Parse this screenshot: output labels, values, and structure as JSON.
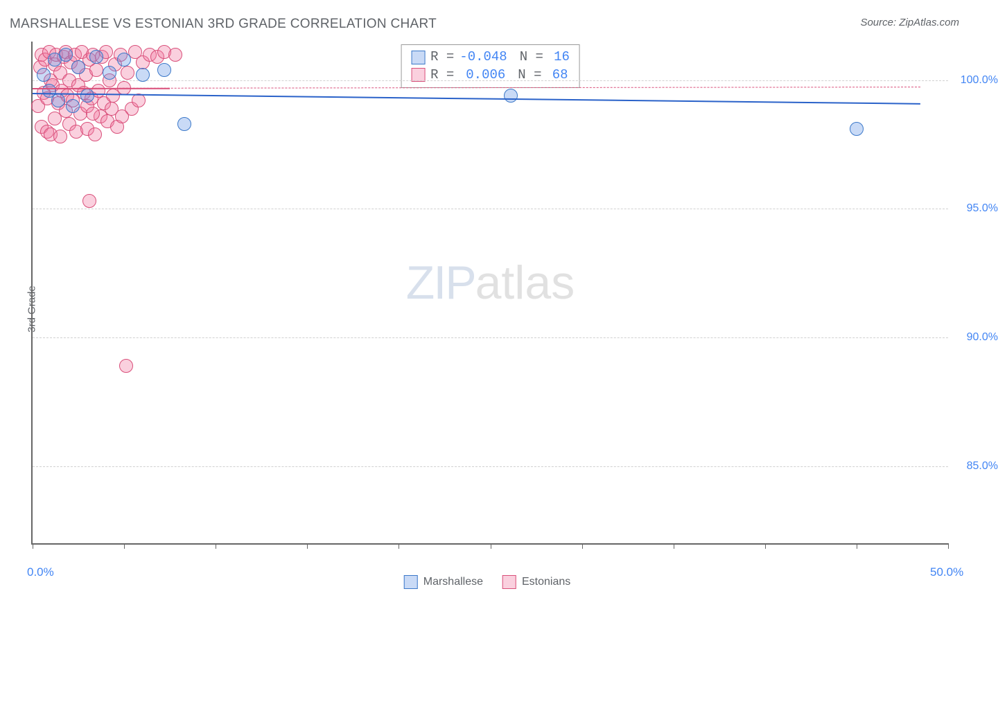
{
  "title": "MARSHALLESE VS ESTONIAN 3RD GRADE CORRELATION CHART",
  "source": "Source: ZipAtlas.com",
  "yAxisLabel": "3rd Grade",
  "watermark": {
    "bold": "ZIP",
    "light": "atlas"
  },
  "chart": {
    "type": "scatter",
    "xlim": [
      0,
      50
    ],
    "ylim": [
      82,
      101.5
    ],
    "background_color": "#ffffff",
    "grid_color": "#d0d0d0",
    "axis_color": "#666666",
    "yTicks": [
      {
        "v": 100,
        "label": "100.0%"
      },
      {
        "v": 95,
        "label": "95.0%"
      },
      {
        "v": 90,
        "label": "90.0%"
      },
      {
        "v": 85,
        "label": "85.0%"
      }
    ],
    "xTicksMinor": [
      0,
      5,
      10,
      15,
      20,
      25,
      30,
      35,
      40,
      45,
      50
    ],
    "xTickLabels": {
      "left": "0.0%",
      "right": "50.0%"
    },
    "marker_radius": 10,
    "marker_border_width": 1.2,
    "series": [
      {
        "name": "Marshallese",
        "fill": "rgba(100,150,230,0.35)",
        "stroke": "#3b78c9",
        "trend": {
          "y1": 99.5,
          "y2": 99.1,
          "x1": 0,
          "x2": 48.5,
          "color": "#2a62c9",
          "width": 2.5,
          "dashed": false
        },
        "stats": {
          "R": "-0.048",
          "N": "16"
        },
        "points": [
          [
            0.6,
            100.2
          ],
          [
            0.9,
            99.6
          ],
          [
            1.2,
            100.8
          ],
          [
            1.4,
            99.2
          ],
          [
            1.8,
            101.0
          ],
          [
            2.2,
            99.0
          ],
          [
            2.5,
            100.5
          ],
          [
            3.0,
            99.4
          ],
          [
            3.5,
            100.9
          ],
          [
            4.2,
            100.3
          ],
          [
            5.0,
            100.8
          ],
          [
            6.0,
            100.2
          ],
          [
            7.2,
            100.4
          ],
          [
            8.3,
            98.3
          ],
          [
            26.1,
            99.4
          ],
          [
            45.0,
            98.1
          ]
        ]
      },
      {
        "name": "Estonians",
        "fill": "rgba(240,120,160,0.35)",
        "stroke": "#d94f7a",
        "trend": {
          "y1": 99.7,
          "y2": 99.75,
          "x1": 0,
          "x2": 48.5,
          "color": "#d94f7a",
          "width": 1.5,
          "dashed": true
        },
        "trendSolidSegment": {
          "x1": 0,
          "x2": 7.5
        },
        "stats": {
          "R": " 0.006",
          "N": "68"
        },
        "points": [
          [
            0.3,
            99.0
          ],
          [
            0.4,
            100.5
          ],
          [
            0.5,
            98.2
          ],
          [
            0.5,
            101.0
          ],
          [
            0.6,
            99.5
          ],
          [
            0.7,
            100.8
          ],
          [
            0.8,
            98.0
          ],
          [
            0.8,
            99.3
          ],
          [
            0.9,
            101.1
          ],
          [
            1.0,
            100.0
          ],
          [
            1.0,
            97.9
          ],
          [
            1.1,
            99.8
          ],
          [
            1.2,
            100.6
          ],
          [
            1.2,
            98.5
          ],
          [
            1.3,
            101.0
          ],
          [
            1.4,
            99.1
          ],
          [
            1.5,
            100.3
          ],
          [
            1.5,
            97.8
          ],
          [
            1.6,
            99.6
          ],
          [
            1.7,
            100.9
          ],
          [
            1.8,
            98.8
          ],
          [
            1.8,
            101.1
          ],
          [
            1.9,
            99.4
          ],
          [
            2.0,
            100.0
          ],
          [
            2.0,
            98.3
          ],
          [
            2.1,
            100.7
          ],
          [
            2.2,
            99.2
          ],
          [
            2.3,
            101.0
          ],
          [
            2.4,
            98.0
          ],
          [
            2.5,
            99.8
          ],
          [
            2.5,
            100.5
          ],
          [
            2.6,
            98.7
          ],
          [
            2.7,
            101.1
          ],
          [
            2.8,
            99.5
          ],
          [
            2.9,
            100.2
          ],
          [
            3.0,
            98.1
          ],
          [
            3.0,
            99.0
          ],
          [
            3.1,
            100.8
          ],
          [
            3.2,
            99.3
          ],
          [
            3.3,
            101.0
          ],
          [
            3.4,
            97.9
          ],
          [
            3.5,
            100.4
          ],
          [
            3.6,
            99.6
          ],
          [
            3.7,
            98.6
          ],
          [
            3.8,
            100.9
          ],
          [
            3.9,
            99.1
          ],
          [
            4.0,
            101.1
          ],
          [
            4.1,
            98.4
          ],
          [
            4.2,
            100.0
          ],
          [
            4.4,
            99.4
          ],
          [
            4.5,
            100.6
          ],
          [
            4.6,
            98.2
          ],
          [
            4.8,
            101.0
          ],
          [
            5.0,
            99.7
          ],
          [
            5.2,
            100.3
          ],
          [
            5.4,
            98.9
          ],
          [
            5.6,
            101.1
          ],
          [
            5.8,
            99.2
          ],
          [
            6.0,
            100.7
          ],
          [
            6.4,
            101.0
          ],
          [
            6.8,
            100.9
          ],
          [
            7.2,
            101.1
          ],
          [
            3.1,
            95.3
          ],
          [
            3.3,
            98.7
          ],
          [
            4.3,
            98.9
          ],
          [
            4.9,
            98.6
          ],
          [
            5.1,
            88.9
          ],
          [
            7.8,
            101.0
          ]
        ]
      }
    ]
  },
  "bottomLegend": [
    {
      "label": "Marshallese",
      "fill": "rgba(100,150,230,0.35)",
      "stroke": "#3b78c9"
    },
    {
      "label": "Estonians",
      "fill": "rgba(240,120,160,0.35)",
      "stroke": "#d94f7a"
    }
  ]
}
